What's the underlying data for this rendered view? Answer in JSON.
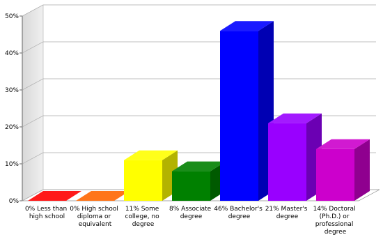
{
  "chart_data": {
    "type": "bar3d",
    "categories": [
      "0% Less than high school",
      "0% High school diploma or equivalent",
      "11% Some college, no degree",
      "8% Associate degree",
      "46% Bachelor's degree",
      "21% Master's degree",
      "14% Doctoral (Ph.D.) or professional degree"
    ],
    "values": [
      0,
      0,
      11,
      8,
      46,
      21,
      14
    ],
    "colors": [
      "#ff0000",
      "#ff6600",
      "#ffff00",
      "#008000",
      "#0000ff",
      "#9900ff",
      "#cc00cc"
    ],
    "ylim": [
      0,
      50
    ],
    "yticks": [
      {
        "value": 0,
        "label": "0%"
      },
      {
        "value": 10,
        "label": "10%"
      },
      {
        "value": 20,
        "label": "20%"
      },
      {
        "value": 30,
        "label": "30%"
      },
      {
        "value": 40,
        "label": "40%"
      },
      {
        "value": 50,
        "label": "50%"
      }
    ],
    "grid": true
  }
}
